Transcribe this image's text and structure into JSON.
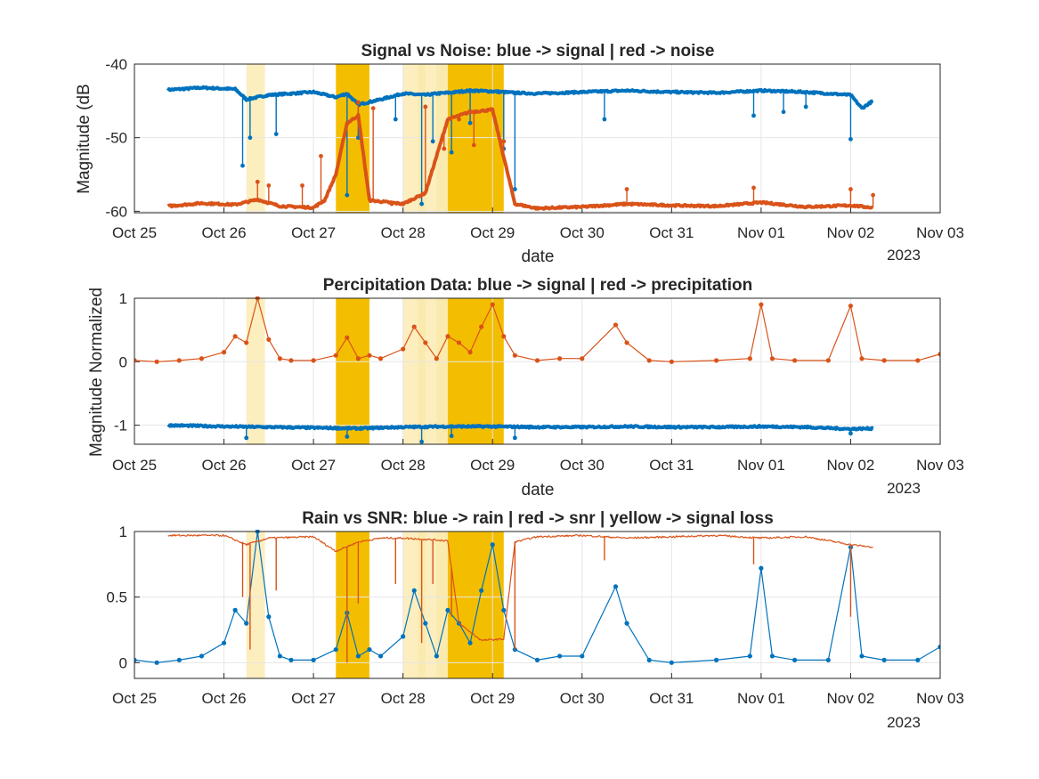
{
  "figure": {
    "colors": {
      "blue": "#0072BD",
      "red": "#D95319",
      "band_strong": "#F4BE00",
      "band_light": "#FBE8A8",
      "grid": "#E6E6E6",
      "axis": "#262626"
    }
  },
  "chart_data": [
    {
      "type": "line",
      "title": "Signal vs Noise: blue -> signal | red -> noise",
      "xlabel": "date",
      "ylabel": "Magnitude (dB",
      "x_tick_labels": [
        "Oct 25",
        "Oct 26",
        "Oct 27",
        "Oct 28",
        "Oct 29",
        "Oct 30",
        "Oct 31",
        "Nov 01",
        "Nov 02",
        "Nov 03"
      ],
      "x_year_label": "2023",
      "xlim": [
        "2023-10-25",
        "2023-11-03"
      ],
      "ylim": [
        -60.2,
        -40
      ],
      "y_ticks": [
        -60,
        -50,
        -40
      ],
      "y_tick_labels": [
        "-60",
        "-50",
        "-40"
      ],
      "grid": true,
      "series": [
        {
          "color": "blue",
          "marker": "dot",
          "x": [
            "2023-10-25 09:00",
            "2023-10-25 18:00",
            "2023-10-26 03:00",
            "2023-10-26 06:00",
            "2023-10-26 12:00",
            "2023-10-26 18:00",
            "2023-10-27 00:00",
            "2023-10-27 06:00",
            "2023-10-27 09:00",
            "2023-10-27 12:00",
            "2023-10-27 18:00",
            "2023-10-28 00:00",
            "2023-10-28 06:00",
            "2023-10-28 09:00",
            "2023-10-28 12:00",
            "2023-10-28 18:00",
            "2023-10-29 00:00",
            "2023-10-29 06:00",
            "2023-10-29 12:00",
            "2023-10-30 00:00",
            "2023-10-30 12:00",
            "2023-10-31 00:00",
            "2023-10-31 12:00",
            "2023-11-01 00:00",
            "2023-11-01 12:00",
            "2023-11-02 00:00",
            "2023-11-02 03:00",
            "2023-11-02 06:00"
          ],
          "y": [
            -43.5,
            -43.2,
            -43.4,
            -44.8,
            -44.2,
            -44.0,
            -43.8,
            -44.5,
            -44.0,
            -45.5,
            -44.8,
            -44.0,
            -44.2,
            -44.0,
            -43.9,
            -43.6,
            -43.7,
            -43.9,
            -44.0,
            -43.8,
            -43.6,
            -43.8,
            -43.9,
            -43.6,
            -43.8,
            -44.2,
            -46.0,
            -45.0
          ],
          "spikes": [
            {
              "x": "2023-10-26 05:00",
              "y": -53.8
            },
            {
              "x": "2023-10-26 07:00",
              "y": -50.0
            },
            {
              "x": "2023-10-26 14:00",
              "y": -49.5
            },
            {
              "x": "2023-10-27 09:00",
              "y": -57.8
            },
            {
              "x": "2023-10-27 12:00",
              "y": -50.0
            },
            {
              "x": "2023-10-27 22:00",
              "y": -47.5
            },
            {
              "x": "2023-10-28 05:00",
              "y": -59.0
            },
            {
              "x": "2023-10-28 08:00",
              "y": -50.5
            },
            {
              "x": "2023-10-28 13:00",
              "y": -52.0
            },
            {
              "x": "2023-10-28 18:00",
              "y": -48.0
            },
            {
              "x": "2023-10-29 03:00",
              "y": -51.5
            },
            {
              "x": "2023-10-29 06:00",
              "y": -57.0
            },
            {
              "x": "2023-10-30 06:00",
              "y": -47.5
            },
            {
              "x": "2023-10-31 22:00",
              "y": -47.0
            },
            {
              "x": "2023-11-01 06:00",
              "y": -46.5
            },
            {
              "x": "2023-11-01 12:00",
              "y": -45.8
            },
            {
              "x": "2023-11-02 00:00",
              "y": -50.2
            }
          ]
        },
        {
          "color": "red",
          "marker": "dot",
          "x": [
            "2023-10-25 09:00",
            "2023-10-25 18:00",
            "2023-10-26 03:00",
            "2023-10-26 09:00",
            "2023-10-26 15:00",
            "2023-10-27 00:00",
            "2023-10-27 03:00",
            "2023-10-27 06:00",
            "2023-10-27 09:00",
            "2023-10-27 12:00",
            "2023-10-27 15:00",
            "2023-10-28 00:00",
            "2023-10-28 06:00",
            "2023-10-28 12:00",
            "2023-10-28 18:00",
            "2023-10-29 00:00",
            "2023-10-29 06:00",
            "2023-10-29 12:00",
            "2023-10-30 00:00",
            "2023-10-30 12:00",
            "2023-10-31 00:00",
            "2023-10-31 12:00",
            "2023-11-01 00:00",
            "2023-11-01 12:00",
            "2023-11-02 00:00",
            "2023-11-02 06:00"
          ],
          "y": [
            -59.3,
            -58.9,
            -59.1,
            -58.4,
            -59.3,
            -59.5,
            -58.5,
            -55.0,
            -48.0,
            -47.0,
            -58.5,
            -59.0,
            -57.5,
            -47.5,
            -46.5,
            -46.2,
            -59.0,
            -59.6,
            -59.4,
            -59.0,
            -59.2,
            -59.3,
            -58.8,
            -59.4,
            -59.2,
            -59.5
          ],
          "spikes": [
            {
              "x": "2023-10-26 09:00",
              "y": -56.0
            },
            {
              "x": "2023-10-26 12:00",
              "y": -56.5
            },
            {
              "x": "2023-10-26 21:00",
              "y": -56.5
            },
            {
              "x": "2023-10-27 02:00",
              "y": -52.5
            },
            {
              "x": "2023-10-27 12:00",
              "y": -45.2
            },
            {
              "x": "2023-10-27 16:00",
              "y": -46.0
            },
            {
              "x": "2023-10-27 21:00",
              "y": -59.0
            },
            {
              "x": "2023-10-28 06:00",
              "y": -45.8
            },
            {
              "x": "2023-10-28 11:00",
              "y": -51.5
            },
            {
              "x": "2023-10-28 15:00",
              "y": -47.5
            },
            {
              "x": "2023-10-28 19:00",
              "y": -51.0
            },
            {
              "x": "2023-10-29 03:00",
              "y": -50.5
            },
            {
              "x": "2023-10-30 12:00",
              "y": -57.0
            },
            {
              "x": "2023-10-31 22:00",
              "y": -56.8
            },
            {
              "x": "2023-11-02 00:00",
              "y": -57.0
            },
            {
              "x": "2023-11-02 06:00",
              "y": -57.8
            }
          ]
        }
      ]
    },
    {
      "type": "line",
      "title": "Percipitation Data: blue -> signal | red -> precipitation",
      "xlabel": "date",
      "ylabel": "Magnitude Normalized",
      "x_tick_labels": [
        "Oct 25",
        "Oct 26",
        "Oct 27",
        "Oct 28",
        "Oct 29",
        "Oct 30",
        "Oct 31",
        "Nov 01",
        "Nov 02",
        "Nov 03"
      ],
      "x_year_label": "2023",
      "xlim": [
        "2023-10-25",
        "2023-11-03"
      ],
      "ylim": [
        -1.3,
        1.0
      ],
      "y_ticks": [
        -1,
        0,
        1
      ],
      "y_tick_labels": [
        "-1",
        "0",
        "1"
      ],
      "grid": true,
      "series": [
        {
          "color": "blue",
          "marker": "dot",
          "x": [
            "2023-10-25 09:00",
            "2023-10-26 00:00",
            "2023-10-26 12:00",
            "2023-10-27 00:00",
            "2023-10-27 12:00",
            "2023-10-28 00:00",
            "2023-10-28 12:00",
            "2023-10-29 00:00",
            "2023-10-29 12:00",
            "2023-10-30 00:00",
            "2023-10-30 12:00",
            "2023-10-31 00:00",
            "2023-10-31 12:00",
            "2023-11-01 00:00",
            "2023-11-01 12:00",
            "2023-11-02 00:00",
            "2023-11-02 06:00"
          ],
          "y": [
            -1.0,
            -1.02,
            -1.03,
            -1.04,
            -1.05,
            -1.03,
            -1.02,
            -1.02,
            -1.03,
            -1.03,
            -1.02,
            -1.03,
            -1.03,
            -1.02,
            -1.03,
            -1.06,
            -1.05
          ],
          "spikes": [
            {
              "x": "2023-10-26 06:00",
              "y": -1.2
            },
            {
              "x": "2023-10-27 09:00",
              "y": -1.18
            },
            {
              "x": "2023-10-28 05:00",
              "y": -1.26
            },
            {
              "x": "2023-10-28 13:00",
              "y": -1.17
            },
            {
              "x": "2023-10-29 06:00",
              "y": -1.2
            },
            {
              "x": "2023-11-02 00:00",
              "y": -1.13
            }
          ]
        },
        {
          "color": "red",
          "marker": "dot",
          "x": [
            "2023-10-25 00:00",
            "2023-10-25 06:00",
            "2023-10-25 12:00",
            "2023-10-25 18:00",
            "2023-10-26 00:00",
            "2023-10-26 03:00",
            "2023-10-26 06:00",
            "2023-10-26 09:00",
            "2023-10-26 12:00",
            "2023-10-26 15:00",
            "2023-10-26 18:00",
            "2023-10-27 00:00",
            "2023-10-27 06:00",
            "2023-10-27 09:00",
            "2023-10-27 12:00",
            "2023-10-27 15:00",
            "2023-10-27 18:00",
            "2023-10-28 00:00",
            "2023-10-28 03:00",
            "2023-10-28 06:00",
            "2023-10-28 09:00",
            "2023-10-28 12:00",
            "2023-10-28 15:00",
            "2023-10-28 18:00",
            "2023-10-28 21:00",
            "2023-10-29 00:00",
            "2023-10-29 03:00",
            "2023-10-29 06:00",
            "2023-10-29 12:00",
            "2023-10-29 18:00",
            "2023-10-30 00:00",
            "2023-10-30 09:00",
            "2023-10-30 12:00",
            "2023-10-30 18:00",
            "2023-10-31 00:00",
            "2023-10-31 12:00",
            "2023-10-31 21:00",
            "2023-11-01 00:00",
            "2023-11-01 03:00",
            "2023-11-01 09:00",
            "2023-11-01 18:00",
            "2023-11-02 00:00",
            "2023-11-02 03:00",
            "2023-11-02 09:00",
            "2023-11-02 18:00",
            "2023-11-03 00:00"
          ],
          "y": [
            0.02,
            0.0,
            0.02,
            0.05,
            0.15,
            0.4,
            0.3,
            1.0,
            0.35,
            0.05,
            0.02,
            0.02,
            0.1,
            0.38,
            0.05,
            0.1,
            0.05,
            0.2,
            0.55,
            0.3,
            0.05,
            0.4,
            0.3,
            0.15,
            0.55,
            0.9,
            0.4,
            0.1,
            0.02,
            0.05,
            0.05,
            0.58,
            0.3,
            0.02,
            0.0,
            0.02,
            0.05,
            0.9,
            0.05,
            0.02,
            0.02,
            0.88,
            0.05,
            0.02,
            0.02,
            0.12
          ]
        }
      ]
    },
    {
      "type": "line",
      "title": "Rain vs SNR: blue -> rain | red -> snr | yellow -> signal loss",
      "xlabel": "",
      "ylabel": "",
      "x_tick_labels": [
        "Oct 25",
        "Oct 26",
        "Oct 27",
        "Oct 28",
        "Oct 29",
        "Oct 30",
        "Oct 31",
        "Nov 01",
        "Nov 02",
        "Nov 03"
      ],
      "x_year_label": "2023",
      "xlim": [
        "2023-10-25",
        "2023-11-03"
      ],
      "ylim": [
        -0.12,
        1.0
      ],
      "y_ticks": [
        0,
        0.5,
        1
      ],
      "y_tick_labels": [
        "0",
        "0.5",
        "1"
      ],
      "grid": true,
      "series": [
        {
          "color": "blue",
          "marker": "dot",
          "x": [
            "2023-10-25 00:00",
            "2023-10-25 06:00",
            "2023-10-25 12:00",
            "2023-10-25 18:00",
            "2023-10-26 00:00",
            "2023-10-26 03:00",
            "2023-10-26 06:00",
            "2023-10-26 09:00",
            "2023-10-26 12:00",
            "2023-10-26 15:00",
            "2023-10-26 18:00",
            "2023-10-27 00:00",
            "2023-10-27 06:00",
            "2023-10-27 09:00",
            "2023-10-27 12:00",
            "2023-10-27 15:00",
            "2023-10-27 18:00",
            "2023-10-28 00:00",
            "2023-10-28 03:00",
            "2023-10-28 06:00",
            "2023-10-28 09:00",
            "2023-10-28 12:00",
            "2023-10-28 15:00",
            "2023-10-28 18:00",
            "2023-10-28 21:00",
            "2023-10-29 00:00",
            "2023-10-29 03:00",
            "2023-10-29 06:00",
            "2023-10-29 12:00",
            "2023-10-29 18:00",
            "2023-10-30 00:00",
            "2023-10-30 09:00",
            "2023-10-30 12:00",
            "2023-10-30 18:00",
            "2023-10-31 00:00",
            "2023-10-31 12:00",
            "2023-10-31 21:00",
            "2023-11-01 00:00",
            "2023-11-01 03:00",
            "2023-11-01 09:00",
            "2023-11-01 18:00",
            "2023-11-02 00:00",
            "2023-11-02 03:00",
            "2023-11-02 09:00",
            "2023-11-02 18:00",
            "2023-11-03 00:00"
          ],
          "y": [
            0.02,
            0.0,
            0.02,
            0.05,
            0.15,
            0.4,
            0.3,
            1.0,
            0.35,
            0.05,
            0.02,
            0.02,
            0.1,
            0.38,
            0.05,
            0.1,
            0.05,
            0.2,
            0.55,
            0.3,
            0.05,
            0.4,
            0.3,
            0.15,
            0.55,
            0.9,
            0.4,
            0.1,
            0.02,
            0.05,
            0.05,
            0.58,
            0.3,
            0.02,
            0.0,
            0.02,
            0.05,
            0.72,
            0.05,
            0.02,
            0.02,
            0.88,
            0.05,
            0.02,
            0.02,
            0.12
          ]
        },
        {
          "color": "red",
          "marker": "none",
          "x": [
            "2023-10-25 09:00",
            "2023-10-26 00:00",
            "2023-10-26 06:00",
            "2023-10-26 12:00",
            "2023-10-27 00:00",
            "2023-10-27 06:00",
            "2023-10-27 12:00",
            "2023-10-27 18:00",
            "2023-10-28 00:00",
            "2023-10-28 12:00",
            "2023-10-28 15:00",
            "2023-10-28 21:00",
            "2023-10-29 03:00",
            "2023-10-29 06:00",
            "2023-10-29 12:00",
            "2023-10-30 00:00",
            "2023-10-30 12:00",
            "2023-10-31 00:00",
            "2023-10-31 12:00",
            "2023-11-01 00:00",
            "2023-11-01 12:00",
            "2023-11-02 00:00",
            "2023-11-02 06:00"
          ],
          "y": [
            0.97,
            0.97,
            0.9,
            0.95,
            0.96,
            0.85,
            0.92,
            0.95,
            0.95,
            0.93,
            0.3,
            0.17,
            0.18,
            0.92,
            0.96,
            0.97,
            0.95,
            0.96,
            0.97,
            0.95,
            0.96,
            0.9,
            0.88
          ],
          "spikes": [
            {
              "x": "2023-10-26 05:00",
              "y": 0.5
            },
            {
              "x": "2023-10-26 07:00",
              "y": 0.1
            },
            {
              "x": "2023-10-26 14:00",
              "y": 0.55
            },
            {
              "x": "2023-10-27 09:00",
              "y": 0.0
            },
            {
              "x": "2023-10-27 12:00",
              "y": 0.45
            },
            {
              "x": "2023-10-27 22:00",
              "y": 0.6
            },
            {
              "x": "2023-10-28 05:00",
              "y": 0.15
            },
            {
              "x": "2023-10-28 08:00",
              "y": 0.6
            },
            {
              "x": "2023-10-28 13:00",
              "y": 0.35
            },
            {
              "x": "2023-10-29 06:00",
              "y": 0.1
            },
            {
              "x": "2023-10-30 06:00",
              "y": 0.78
            },
            {
              "x": "2023-10-31 22:00",
              "y": 0.75
            },
            {
              "x": "2023-11-02 00:00",
              "y": 0.35
            }
          ]
        }
      ]
    }
  ],
  "signal_loss_bands": [
    {
      "start": "2023-10-26 06:00",
      "end": "2023-10-26 11:00",
      "strength": "light"
    },
    {
      "start": "2023-10-27 06:00",
      "end": "2023-10-27 15:00",
      "strength": "strong"
    },
    {
      "start": "2023-10-28 00:00",
      "end": "2023-10-28 06:00",
      "strength": "light"
    },
    {
      "start": "2023-10-28 04:00",
      "end": "2023-10-28 12:00",
      "strength": "light"
    },
    {
      "start": "2023-10-28 09:00",
      "end": "2023-10-28 13:00",
      "strength": "light"
    },
    {
      "start": "2023-10-28 12:00",
      "end": "2023-10-29 03:00",
      "strength": "strong"
    }
  ]
}
